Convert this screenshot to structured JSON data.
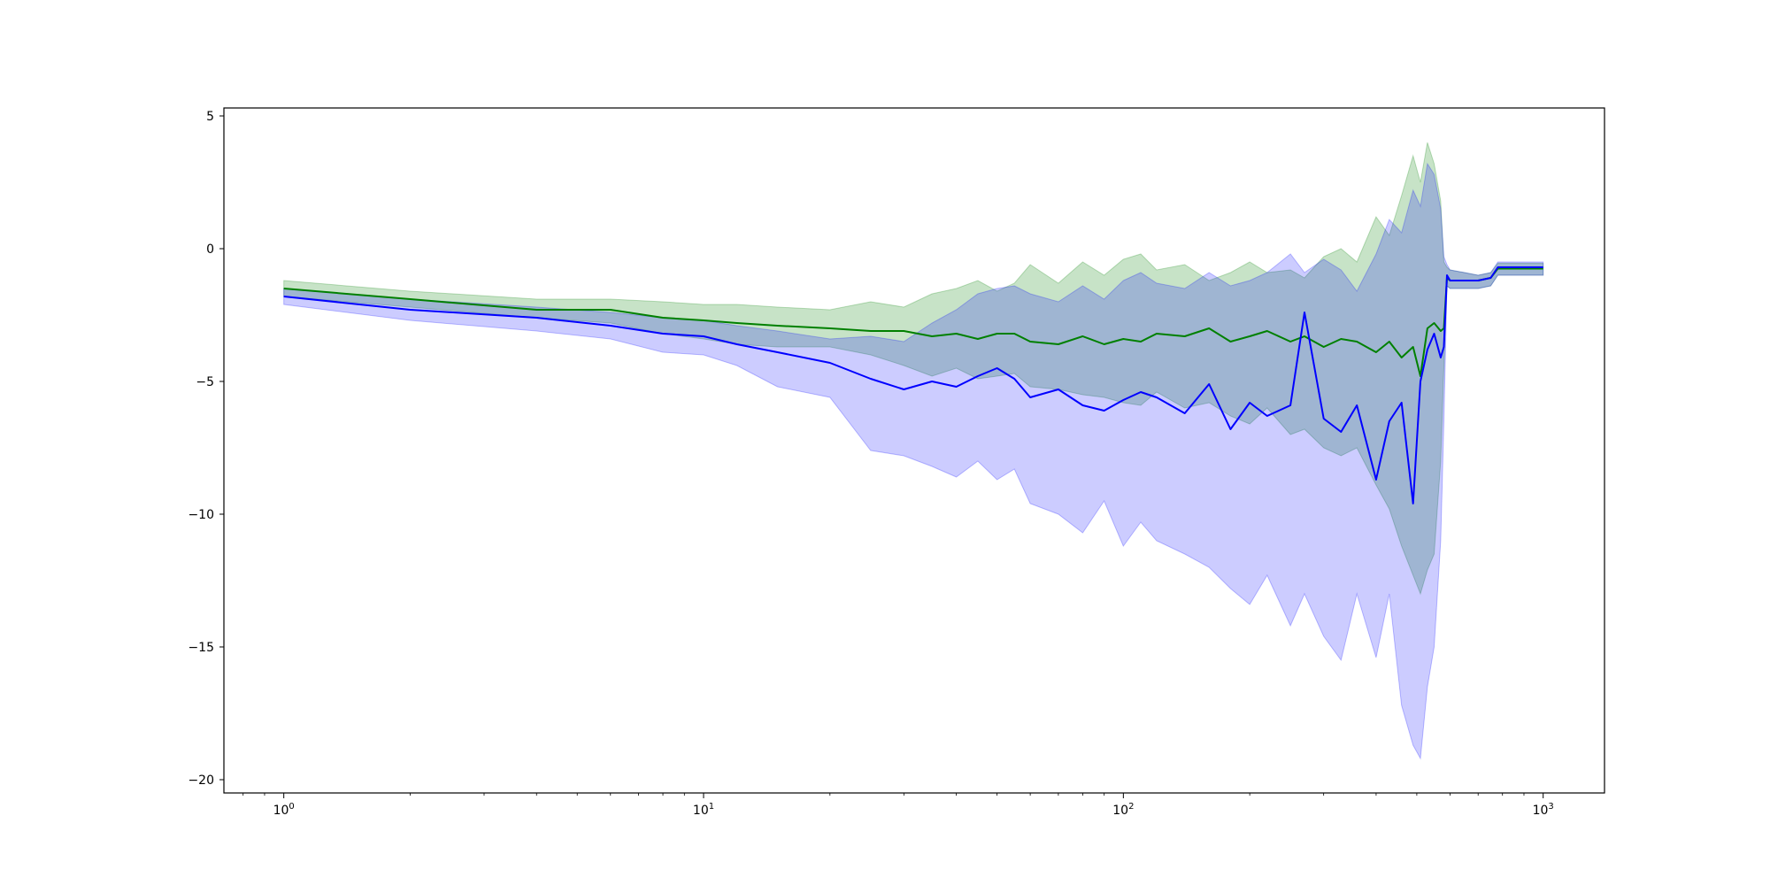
{
  "chart_data": {
    "type": "line",
    "title": "",
    "xlabel": "",
    "ylabel": "",
    "x_scale": "log",
    "xlim": [
      0.72,
      1400
    ],
    "ylim": [
      -20.5,
      5.3
    ],
    "grid": false,
    "legend": "none",
    "x_ticks": [
      {
        "value": 1,
        "base": "10",
        "exp": "0"
      },
      {
        "value": 10,
        "base": "10",
        "exp": "1"
      },
      {
        "value": 100,
        "base": "10",
        "exp": "2"
      },
      {
        "value": 1000,
        "base": "10",
        "exp": "3"
      }
    ],
    "y_ticks": [
      {
        "value": 5,
        "label": "5"
      },
      {
        "value": 0,
        "label": "0"
      },
      {
        "value": -5,
        "label": "−5"
      },
      {
        "value": -10,
        "label": "−10"
      },
      {
        "value": -15,
        "label": "−15"
      },
      {
        "value": -20,
        "label": "−20"
      }
    ],
    "series": [
      {
        "color": "#008000",
        "band_color": "#008000",
        "band_opacity": 0.22,
        "x": [
          1,
          2,
          4,
          6,
          8,
          10,
          12,
          15,
          20,
          25,
          30,
          35,
          40,
          45,
          50,
          55,
          60,
          70,
          80,
          90,
          100,
          110,
          120,
          140,
          160,
          180,
          200,
          220,
          250,
          270,
          300,
          330,
          360,
          400,
          430,
          460,
          490,
          510,
          530,
          550,
          570,
          580,
          590,
          600,
          650,
          700,
          750,
          780,
          800,
          900,
          1000
        ],
        "mean": [
          -1.5,
          -1.9,
          -2.3,
          -2.3,
          -2.6,
          -2.7,
          -2.8,
          -2.9,
          -3.0,
          -3.1,
          -3.1,
          -3.3,
          -3.2,
          -3.4,
          -3.2,
          -3.2,
          -3.5,
          -3.6,
          -3.3,
          -3.6,
          -3.4,
          -3.5,
          -3.2,
          -3.3,
          -3.0,
          -3.5,
          -3.3,
          -3.1,
          -3.5,
          -3.3,
          -3.7,
          -3.4,
          -3.5,
          -3.9,
          -3.5,
          -4.1,
          -3.7,
          -4.8,
          -3.0,
          -2.8,
          -3.1,
          -3.0,
          -1.1,
          -1.2,
          -1.2,
          -1.2,
          -1.1,
          -0.75,
          -0.75,
          -0.75,
          -0.75
        ],
        "upper": [
          -1.2,
          -1.6,
          -1.9,
          -1.9,
          -2.0,
          -2.1,
          -2.1,
          -2.2,
          -2.3,
          -2.0,
          -2.2,
          -1.7,
          -1.5,
          -1.2,
          -1.6,
          -1.3,
          -0.6,
          -1.3,
          -0.5,
          -1.0,
          -0.4,
          -0.2,
          -0.8,
          -0.6,
          -1.2,
          -0.9,
          -0.5,
          -0.9,
          -0.8,
          -1.1,
          -0.3,
          0.0,
          -0.5,
          1.2,
          0.5,
          2.0,
          3.5,
          2.5,
          4.0,
          3.2,
          1.8,
          -0.5,
          -0.7,
          -0.8,
          -0.9,
          -1.0,
          -0.9,
          -0.55,
          -0.55,
          -0.55,
          -0.55
        ],
        "lower": [
          -1.8,
          -2.2,
          -2.6,
          -2.8,
          -3.2,
          -3.4,
          -3.6,
          -3.7,
          -3.7,
          -4.0,
          -4.4,
          -4.8,
          -4.5,
          -4.9,
          -4.8,
          -4.7,
          -5.2,
          -5.3,
          -5.5,
          -5.6,
          -5.8,
          -5.9,
          -5.4,
          -6.0,
          -5.8,
          -6.3,
          -6.6,
          -6.0,
          -7.0,
          -6.8,
          -7.5,
          -7.8,
          -7.5,
          -8.9,
          -9.8,
          -11.2,
          -12.3,
          -13.0,
          -12.1,
          -11.5,
          -8.0,
          -4.5,
          -1.4,
          -1.5,
          -1.5,
          -1.5,
          -1.4,
          -1.0,
          -1.0,
          -1.0,
          -1.0
        ]
      },
      {
        "color": "#0000ff",
        "band_color": "#0000ff",
        "band_opacity": 0.2,
        "x": [
          1,
          2,
          4,
          6,
          8,
          10,
          12,
          15,
          20,
          25,
          30,
          35,
          40,
          45,
          50,
          55,
          60,
          70,
          80,
          90,
          100,
          110,
          120,
          140,
          160,
          180,
          200,
          220,
          250,
          270,
          300,
          330,
          360,
          400,
          430,
          460,
          490,
          510,
          530,
          550,
          570,
          580,
          590,
          600,
          650,
          700,
          750,
          780,
          800,
          900,
          1000
        ],
        "mean": [
          -1.8,
          -2.3,
          -2.6,
          -2.9,
          -3.2,
          -3.3,
          -3.6,
          -3.9,
          -4.3,
          -4.9,
          -5.3,
          -5.0,
          -5.2,
          -4.8,
          -4.5,
          -4.9,
          -5.6,
          -5.3,
          -5.9,
          -6.1,
          -5.7,
          -5.4,
          -5.6,
          -6.2,
          -5.1,
          -6.8,
          -5.8,
          -6.3,
          -5.9,
          -2.4,
          -6.4,
          -6.9,
          -5.9,
          -8.7,
          -6.5,
          -5.8,
          -9.6,
          -5.0,
          -3.8,
          -3.2,
          -4.1,
          -3.7,
          -1.0,
          -1.2,
          -1.2,
          -1.2,
          -1.1,
          -0.7,
          -0.7,
          -0.7,
          -0.7
        ],
        "upper": [
          -1.5,
          -1.9,
          -2.2,
          -2.4,
          -2.6,
          -2.7,
          -2.9,
          -3.1,
          -3.4,
          -3.3,
          -3.5,
          -2.8,
          -2.3,
          -1.7,
          -1.5,
          -1.4,
          -1.7,
          -2.0,
          -1.4,
          -1.9,
          -1.2,
          -0.9,
          -1.3,
          -1.5,
          -0.9,
          -1.4,
          -1.2,
          -0.9,
          -0.2,
          -0.9,
          -0.4,
          -0.8,
          -1.6,
          -0.2,
          1.1,
          0.6,
          2.2,
          1.6,
          3.2,
          2.8,
          1.5,
          -0.3,
          -0.6,
          -0.8,
          -0.9,
          -1.0,
          -0.9,
          -0.5,
          -0.5,
          -0.5,
          -0.5
        ],
        "lower": [
          -2.1,
          -2.7,
          -3.1,
          -3.4,
          -3.9,
          -4.0,
          -4.4,
          -5.2,
          -5.6,
          -7.6,
          -7.8,
          -8.2,
          -8.6,
          -8.0,
          -8.7,
          -8.3,
          -9.6,
          -10.0,
          -10.7,
          -9.5,
          -11.2,
          -10.3,
          -11.0,
          -11.5,
          -12.0,
          -12.8,
          -13.4,
          -12.3,
          -14.2,
          -13.0,
          -14.6,
          -15.5,
          -13.0,
          -15.4,
          -13.0,
          -17.2,
          -18.7,
          -19.2,
          -16.5,
          -15.0,
          -11.0,
          -6.5,
          -1.4,
          -1.5,
          -1.5,
          -1.5,
          -1.4,
          -1.0,
          -1.0,
          -1.0,
          -1.0
        ]
      }
    ]
  }
}
